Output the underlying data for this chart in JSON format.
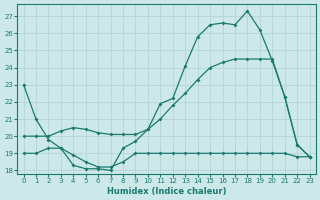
{
  "title": "",
  "xlabel": "Humidex (Indice chaleur)",
  "ylabel": "",
  "bg_color": "#cce8e8",
  "line_color": "#1a7a6e",
  "grid_color": "#b8d8d8",
  "ylim": [
    17.8,
    27.7
  ],
  "xlim": [
    -0.5,
    23.5
  ],
  "yticks": [
    18,
    19,
    20,
    21,
    22,
    23,
    24,
    25,
    26,
    27
  ],
  "xticks": [
    0,
    1,
    2,
    3,
    4,
    5,
    6,
    7,
    8,
    9,
    10,
    11,
    12,
    13,
    14,
    15,
    16,
    17,
    18,
    19,
    20,
    21,
    22,
    23
  ],
  "series1_x": [
    0,
    1,
    2,
    3,
    4,
    5,
    6,
    7,
    8,
    9,
    10,
    11,
    12,
    13,
    14,
    15,
    16,
    17,
    18,
    19,
    20,
    21,
    22,
    23
  ],
  "series1_y": [
    23.0,
    21.0,
    19.8,
    19.3,
    18.3,
    18.1,
    18.1,
    18.0,
    19.3,
    19.7,
    20.4,
    21.9,
    22.2,
    24.1,
    25.8,
    26.5,
    26.6,
    26.5,
    27.3,
    26.2,
    24.4,
    22.3,
    19.5,
    18.8
  ],
  "series2_x": [
    0,
    1,
    2,
    3,
    4,
    5,
    6,
    7,
    8,
    9,
    10,
    11,
    12,
    13,
    14,
    15,
    16,
    17,
    18,
    19,
    20,
    21,
    22,
    23
  ],
  "series2_y": [
    20.0,
    20.0,
    20.0,
    20.3,
    20.5,
    20.4,
    20.2,
    20.1,
    20.1,
    20.1,
    20.4,
    21.0,
    21.8,
    22.5,
    23.3,
    24.0,
    24.3,
    24.5,
    24.5,
    24.5,
    24.5,
    22.3,
    19.5,
    18.8
  ],
  "series3_x": [
    0,
    1,
    2,
    3,
    4,
    5,
    6,
    7,
    8,
    9,
    10,
    11,
    12,
    13,
    14,
    15,
    16,
    17,
    18,
    19,
    20,
    21,
    22,
    23
  ],
  "series3_y": [
    19.0,
    19.0,
    19.3,
    19.3,
    18.9,
    18.5,
    18.2,
    18.2,
    18.5,
    19.0,
    19.0,
    19.0,
    19.0,
    19.0,
    19.0,
    19.0,
    19.0,
    19.0,
    19.0,
    19.0,
    19.0,
    19.0,
    18.8,
    18.8
  ]
}
